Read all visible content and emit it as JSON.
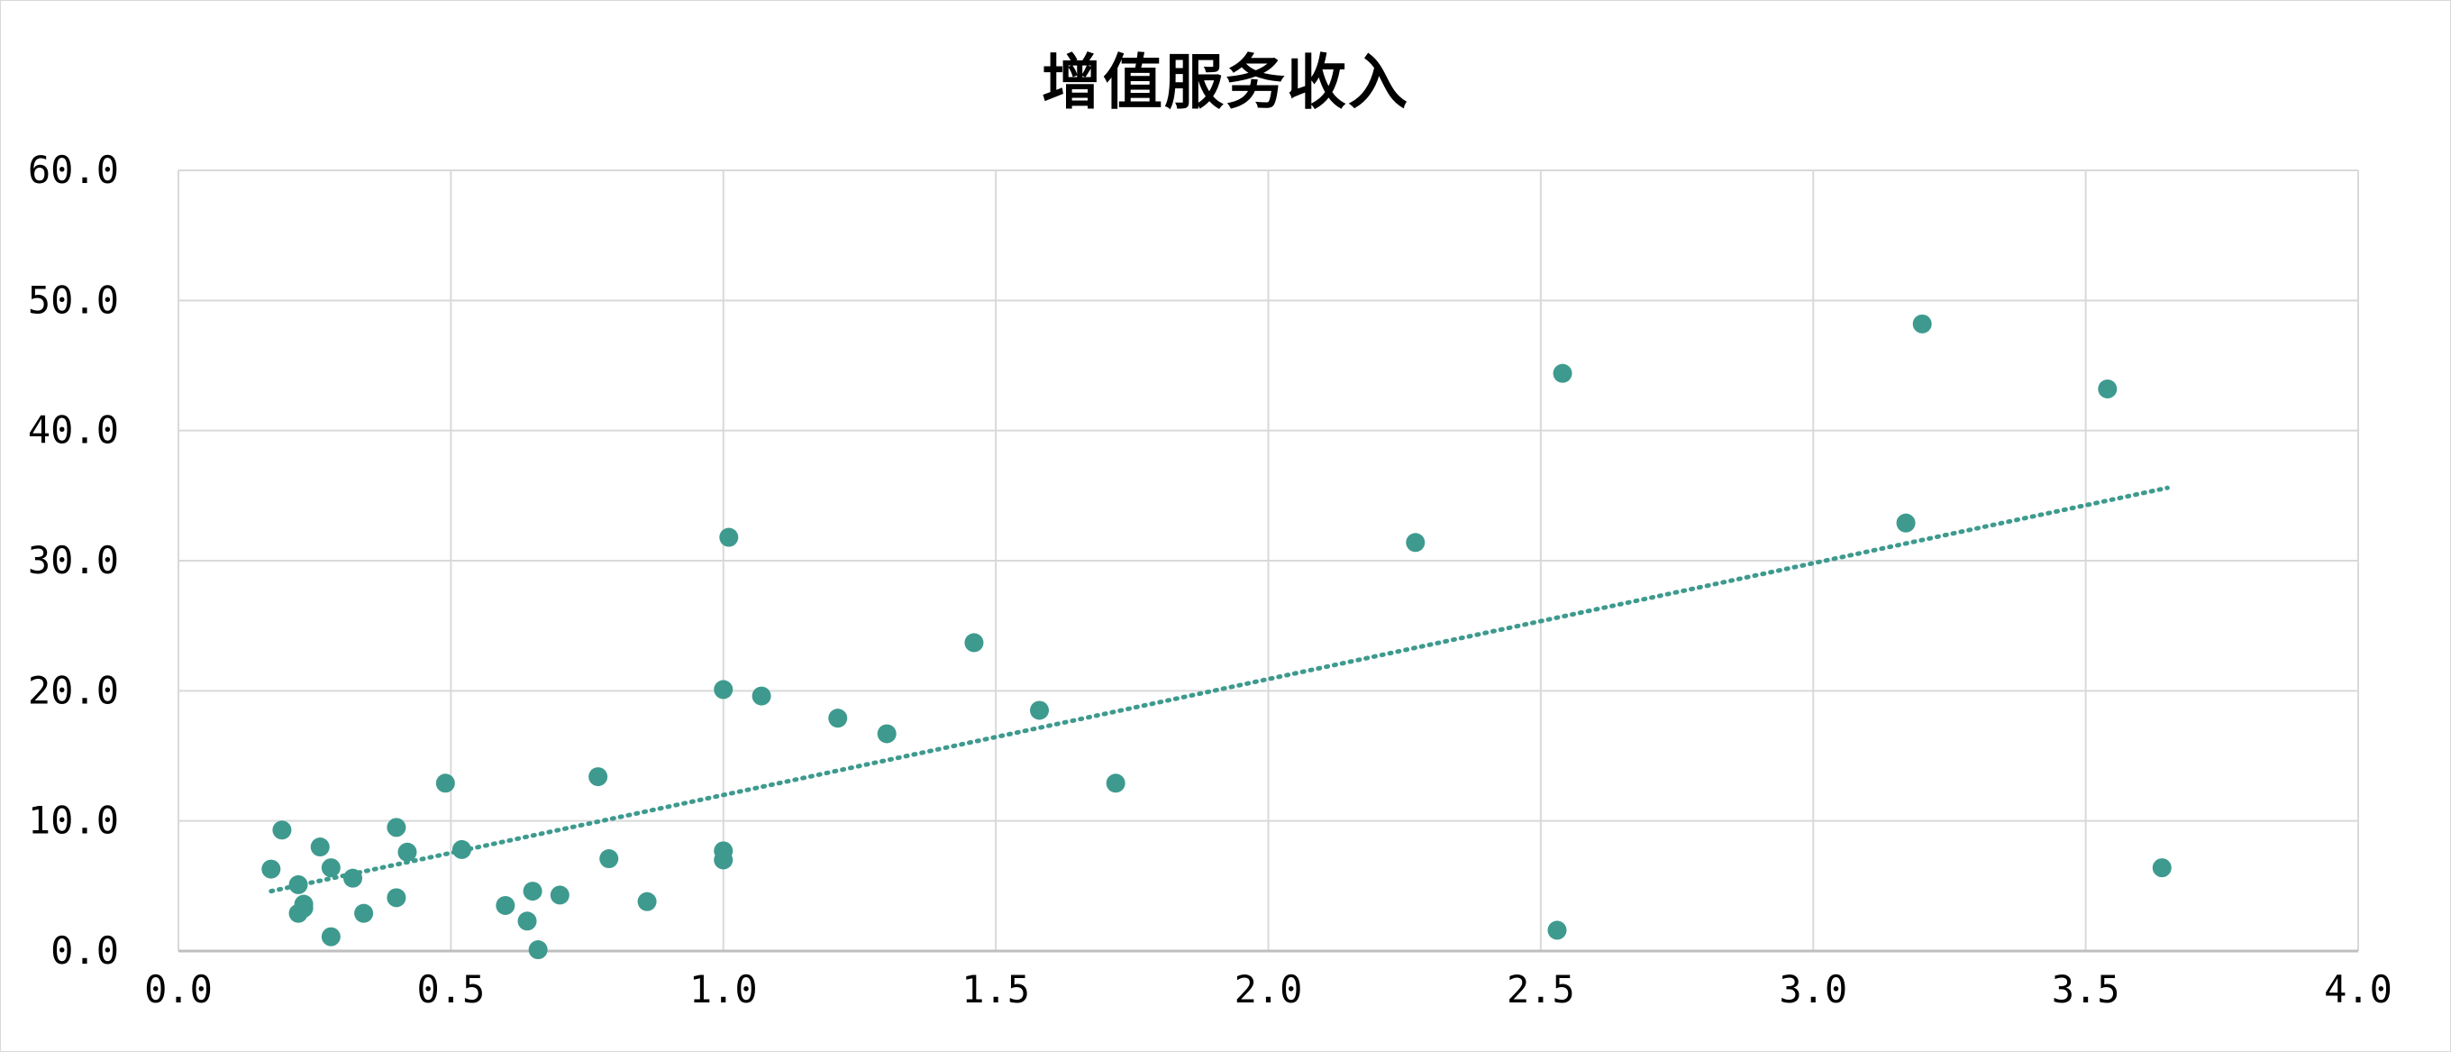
{
  "chart_data": {
    "type": "scatter",
    "title": "增值服务收入",
    "xlabel": "",
    "ylabel": "",
    "xlim": [
      0,
      4
    ],
    "ylim": [
      0,
      60
    ],
    "x_ticks": [
      "0.0",
      "0.5",
      "1.0",
      "1.5",
      "2.0",
      "2.5",
      "3.0",
      "3.5",
      "4.0"
    ],
    "y_ticks": [
      "0.0",
      "10.0",
      "20.0",
      "30.0",
      "40.0",
      "50.0",
      "60.0"
    ],
    "grid": true,
    "legend": "none",
    "point_color": "#3e9a8e",
    "trendline": {
      "type": "linear",
      "style": "dotted",
      "color": "#3e9a8e",
      "x_range": [
        0.17,
        3.65
      ],
      "y_range": [
        4.6,
        35.6
      ]
    },
    "points": [
      {
        "x": 0.17,
        "y": 6.3
      },
      {
        "x": 0.19,
        "y": 9.3
      },
      {
        "x": 0.22,
        "y": 5.1
      },
      {
        "x": 0.22,
        "y": 2.9
      },
      {
        "x": 0.23,
        "y": 3.6
      },
      {
        "x": 0.23,
        "y": 3.3
      },
      {
        "x": 0.26,
        "y": 8.0
      },
      {
        "x": 0.28,
        "y": 6.4
      },
      {
        "x": 0.28,
        "y": 1.1
      },
      {
        "x": 0.32,
        "y": 5.6
      },
      {
        "x": 0.34,
        "y": 2.9
      },
      {
        "x": 0.4,
        "y": 9.5
      },
      {
        "x": 0.4,
        "y": 4.1
      },
      {
        "x": 0.42,
        "y": 7.6
      },
      {
        "x": 0.49,
        "y": 12.9
      },
      {
        "x": 0.52,
        "y": 7.8
      },
      {
        "x": 0.6,
        "y": 3.5
      },
      {
        "x": 0.64,
        "y": 2.3
      },
      {
        "x": 0.65,
        "y": 4.6
      },
      {
        "x": 0.66,
        "y": 0.1
      },
      {
        "x": 0.7,
        "y": 4.3
      },
      {
        "x": 0.77,
        "y": 13.4
      },
      {
        "x": 0.79,
        "y": 7.1
      },
      {
        "x": 0.86,
        "y": 3.8
      },
      {
        "x": 1.0,
        "y": 20.1
      },
      {
        "x": 1.0,
        "y": 7.7
      },
      {
        "x": 1.0,
        "y": 7.0
      },
      {
        "x": 1.01,
        "y": 31.8
      },
      {
        "x": 1.07,
        "y": 19.6
      },
      {
        "x": 1.21,
        "y": 17.9
      },
      {
        "x": 1.3,
        "y": 16.7
      },
      {
        "x": 1.46,
        "y": 23.7
      },
      {
        "x": 1.58,
        "y": 18.5
      },
      {
        "x": 1.72,
        "y": 12.9
      },
      {
        "x": 2.27,
        "y": 31.4
      },
      {
        "x": 2.53,
        "y": 1.6
      },
      {
        "x": 2.54,
        "y": 44.4
      },
      {
        "x": 3.17,
        "y": 32.9
      },
      {
        "x": 3.2,
        "y": 48.2
      },
      {
        "x": 3.54,
        "y": 43.2
      },
      {
        "x": 3.64,
        "y": 6.4
      }
    ]
  }
}
